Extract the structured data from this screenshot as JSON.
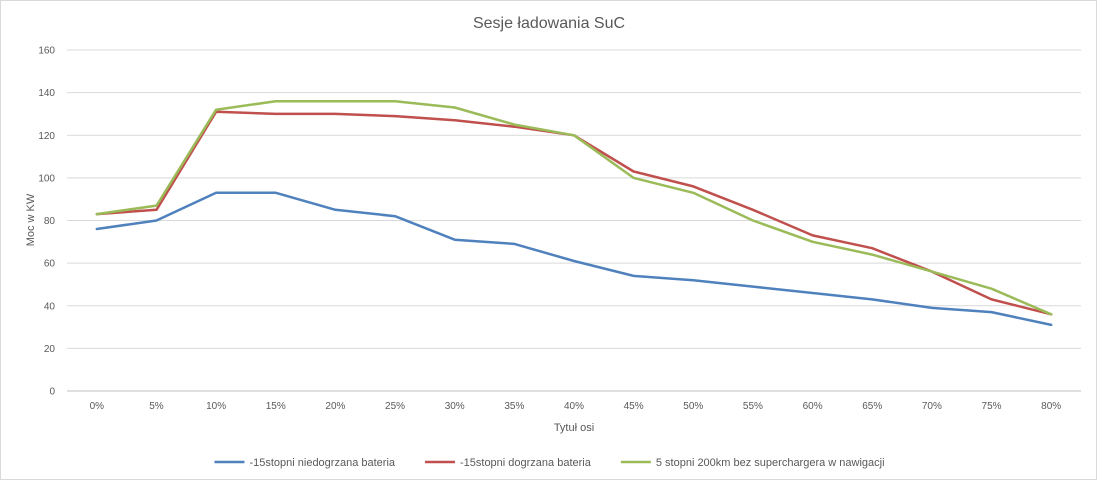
{
  "chart_data": {
    "type": "line",
    "title": "Sesje ładowania SuC",
    "xlabel": "Tytuł osi",
    "ylabel": "Moc w KW",
    "ylim": [
      0,
      160
    ],
    "yticks": [
      0,
      20,
      40,
      60,
      80,
      100,
      120,
      140,
      160
    ],
    "grid": true,
    "legend_position": "bottom",
    "categories": [
      "0%",
      "5%",
      "10%",
      "15%",
      "20%",
      "25%",
      "30%",
      "35%",
      "40%",
      "45%",
      "50%",
      "55%",
      "60%",
      "65%",
      "70%",
      "75%",
      "80%"
    ],
    "series": [
      {
        "name": "-15stopni niedogrzana bateria",
        "color": "#4f81bd",
        "values": [
          76,
          80,
          93,
          93,
          85,
          82,
          71,
          69,
          61,
          54,
          52,
          49,
          46,
          43,
          39,
          37,
          31
        ]
      },
      {
        "name": "-15stopni dogrzana bateria",
        "color": "#c0504d",
        "values": [
          83,
          85,
          131,
          130,
          130,
          129,
          127,
          124,
          120,
          103,
          96,
          85,
          73,
          67,
          56,
          43,
          36
        ]
      },
      {
        "name": "5 stopni 200km bez superchargera w nawigacji",
        "color": "#9bbb59",
        "values": [
          83,
          87,
          132,
          136,
          136,
          136,
          133,
          125,
          120,
          100,
          93,
          80,
          70,
          64,
          56,
          48,
          36
        ]
      }
    ]
  }
}
